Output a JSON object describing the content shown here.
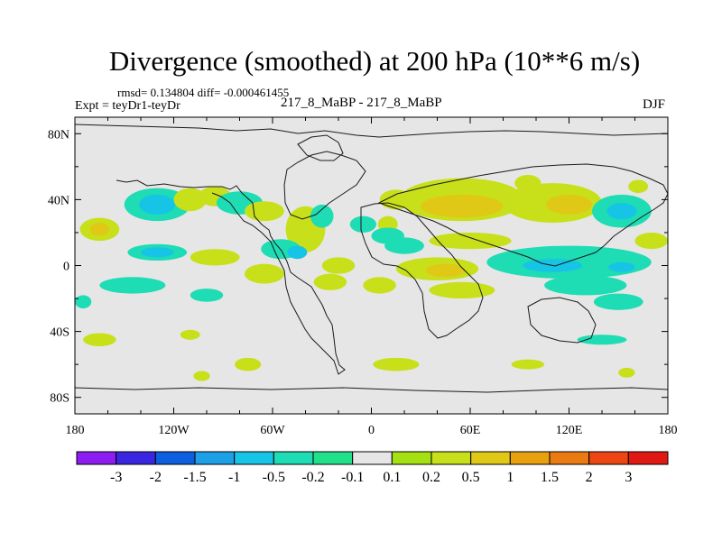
{
  "header": {
    "title": "Divergence (smoothed) at 200 hPa (10**6 m/s)",
    "stats": "rmsd= 0.134804 diff= -0.000461455",
    "experiment": "Expt = teyDr1-teyDr",
    "case": "217_8_MaBP - 217_8_MaBP",
    "season": "DJF"
  },
  "chart_data": {
    "type": "heatmap",
    "title": "Divergence (smoothed) at 200 hPa (10**6 m/s)",
    "xlabel": "",
    "ylabel": "",
    "xlim": [
      -180,
      180
    ],
    "ylim": [
      -90,
      90
    ],
    "x_ticks": [
      {
        "value": -180,
        "label": "180"
      },
      {
        "value": -120,
        "label": "120W"
      },
      {
        "value": -60,
        "label": "60W"
      },
      {
        "value": 0,
        "label": "0"
      },
      {
        "value": 60,
        "label": "60E"
      },
      {
        "value": 120,
        "label": "120E"
      },
      {
        "value": 180,
        "label": "180"
      }
    ],
    "y_ticks": [
      {
        "value": 80,
        "label": "80N"
      },
      {
        "value": 40,
        "label": "40N"
      },
      {
        "value": 0,
        "label": "0"
      },
      {
        "value": -40,
        "label": "40S"
      },
      {
        "value": -80,
        "label": "80S"
      }
    ],
    "colorbar": {
      "colors": [
        "#8c1cf0",
        "#3a26e0",
        "#0e5ee0",
        "#1ea0e6",
        "#16c4e6",
        "#1edcb4",
        "#20e08a",
        "#e6e6e6",
        "#a4e012",
        "#c8e01a",
        "#e0c816",
        "#e8a00e",
        "#ea7a12",
        "#ec4612",
        "#e01a12"
      ],
      "labels": [
        "-3",
        "-2",
        "-1.5",
        "-1",
        "-0.5",
        "-0.2",
        "-0.1",
        "0.1",
        "0.2",
        "0.5",
        "1",
        "1.5",
        "2",
        "3"
      ]
    },
    "regions": [
      {
        "lon": -130,
        "lat": 37,
        "rlon": 20,
        "rlat": 10,
        "level": "-0.2"
      },
      {
        "lon": -130,
        "lat": 37,
        "rlon": 11,
        "rlat": 6,
        "level": "-0.5"
      },
      {
        "lon": -110,
        "lat": 40,
        "rlon": 10,
        "rlat": 7,
        "level": "0.2"
      },
      {
        "lon": -95,
        "lat": 42,
        "rlon": 10,
        "rlat": 6,
        "level": "0.2"
      },
      {
        "lon": -80,
        "lat": 38,
        "rlon": 14,
        "rlat": 7,
        "level": "-0.2"
      },
      {
        "lon": -65,
        "lat": 33,
        "rlon": 12,
        "rlat": 6,
        "level": "0.2"
      },
      {
        "lon": -40,
        "lat": 22,
        "rlon": 12,
        "rlat": 14,
        "level": "0.2"
      },
      {
        "lon": -30,
        "lat": 30,
        "rlon": 7,
        "rlat": 7,
        "level": "-0.2"
      },
      {
        "lon": -5,
        "lat": 25,
        "rlon": 8,
        "rlat": 5,
        "level": "-0.2"
      },
      {
        "lon": 10,
        "lat": 25,
        "rlon": 6,
        "rlat": 5,
        "level": "0.2"
      },
      {
        "lon": 15,
        "lat": 40,
        "rlon": 10,
        "rlat": 6,
        "level": "0.2"
      },
      {
        "lon": 10,
        "lat": 18,
        "rlon": 10,
        "rlat": 5,
        "level": "-0.2"
      },
      {
        "lon": 55,
        "lat": 40,
        "rlon": 38,
        "rlat": 13,
        "level": "0.2"
      },
      {
        "lon": 55,
        "lat": 36,
        "rlon": 25,
        "rlat": 7,
        "level": "0.5"
      },
      {
        "lon": 95,
        "lat": 50,
        "rlon": 8,
        "rlat": 5,
        "level": "0.2"
      },
      {
        "lon": 110,
        "lat": 38,
        "rlon": 30,
        "rlat": 12,
        "level": "0.2"
      },
      {
        "lon": 120,
        "lat": 37,
        "rlon": 14,
        "rlat": 6,
        "level": "0.5"
      },
      {
        "lon": 152,
        "lat": 33,
        "rlon": 18,
        "rlat": 10,
        "level": "-0.2"
      },
      {
        "lon": 152,
        "lat": 33,
        "rlon": 9,
        "rlat": 5,
        "level": "-0.5"
      },
      {
        "lon": 162,
        "lat": 48,
        "rlon": 6,
        "rlat": 4,
        "level": "0.2"
      },
      {
        "lon": -165,
        "lat": 22,
        "rlon": 12,
        "rlat": 7,
        "level": "0.2"
      },
      {
        "lon": -165,
        "lat": 22,
        "rlon": 6,
        "rlat": 4,
        "level": "0.5"
      },
      {
        "lon": -130,
        "lat": 8,
        "rlon": 18,
        "rlat": 5,
        "level": "-0.2"
      },
      {
        "lon": -130,
        "lat": 8,
        "rlon": 10,
        "rlat": 3,
        "level": "-0.5"
      },
      {
        "lon": -95,
        "lat": 5,
        "rlon": 15,
        "rlat": 5,
        "level": "0.2"
      },
      {
        "lon": -55,
        "lat": 10,
        "rlon": 12,
        "rlat": 6,
        "level": "-0.2"
      },
      {
        "lon": -45,
        "lat": 8,
        "rlon": 6,
        "rlat": 4,
        "level": "-0.5"
      },
      {
        "lon": -20,
        "lat": 0,
        "rlon": 10,
        "rlat": 5,
        "level": "0.2"
      },
      {
        "lon": 20,
        "lat": 12,
        "rlon": 12,
        "rlat": 5,
        "level": "-0.2"
      },
      {
        "lon": 60,
        "lat": 15,
        "rlon": 25,
        "rlat": 5,
        "level": "0.2"
      },
      {
        "lon": 40,
        "lat": -2,
        "rlon": 25,
        "rlat": 7,
        "level": "0.2"
      },
      {
        "lon": 45,
        "lat": -3,
        "rlon": 12,
        "rlat": 4,
        "level": "0.5"
      },
      {
        "lon": 120,
        "lat": 2,
        "rlon": 50,
        "rlat": 10,
        "level": "-0.2"
      },
      {
        "lon": 110,
        "lat": 0,
        "rlon": 18,
        "rlat": 4,
        "level": "-0.5"
      },
      {
        "lon": 152,
        "lat": -1,
        "rlon": 8,
        "rlat": 3,
        "level": "-0.5"
      },
      {
        "lon": 170,
        "lat": 15,
        "rlon": 10,
        "rlat": 5,
        "level": "0.2"
      },
      {
        "lon": -145,
        "lat": -12,
        "rlon": 20,
        "rlat": 5,
        "level": "-0.2"
      },
      {
        "lon": -100,
        "lat": -18,
        "rlon": 10,
        "rlat": 4,
        "level": "-0.2"
      },
      {
        "lon": -65,
        "lat": -5,
        "rlon": 12,
        "rlat": 6,
        "level": "0.2"
      },
      {
        "lon": -25,
        "lat": -10,
        "rlon": 10,
        "rlat": 5,
        "level": "0.2"
      },
      {
        "lon": 5,
        "lat": -12,
        "rlon": 10,
        "rlat": 5,
        "level": "0.2"
      },
      {
        "lon": 55,
        "lat": -15,
        "rlon": 20,
        "rlat": 5,
        "level": "0.2"
      },
      {
        "lon": 130,
        "lat": -12,
        "rlon": 25,
        "rlat": 6,
        "level": "-0.2"
      },
      {
        "lon": 150,
        "lat": -22,
        "rlon": 15,
        "rlat": 5,
        "level": "-0.2"
      },
      {
        "lon": -175,
        "lat": -22,
        "rlon": 5,
        "rlat": 4,
        "level": "-0.2"
      },
      {
        "lon": -165,
        "lat": -45,
        "rlon": 10,
        "rlat": 4,
        "level": "0.2"
      },
      {
        "lon": -110,
        "lat": -42,
        "rlon": 6,
        "rlat": 3,
        "level": "0.2"
      },
      {
        "lon": -75,
        "lat": -60,
        "rlon": 8,
        "rlat": 4,
        "level": "0.2"
      },
      {
        "lon": 15,
        "lat": -60,
        "rlon": 14,
        "rlat": 4,
        "level": "0.2"
      },
      {
        "lon": 95,
        "lat": -60,
        "rlon": 10,
        "rlat": 3,
        "level": "0.2"
      },
      {
        "lon": -103,
        "lat": -67,
        "rlon": 5,
        "rlat": 3,
        "level": "0.2"
      },
      {
        "lon": 155,
        "lat": -65,
        "rlon": 5,
        "rlat": 3,
        "level": "0.2"
      },
      {
        "lon": 140,
        "lat": -45,
        "rlon": 15,
        "rlat": 3,
        "level": "-0.2"
      }
    ]
  }
}
